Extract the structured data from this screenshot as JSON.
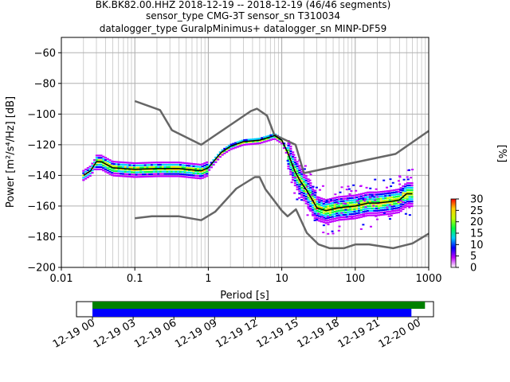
{
  "chart_data": {
    "type": "ppsd",
    "title": {
      "line1": "BK.BK82.00.HHZ   2018-12-19 -- 2018-12-19  (46/46 segments)",
      "line2": "sensor_type CMG-3T sensor_sn T310034",
      "line3": "datalogger_type GuralpMinimus+ datalogger_sn MINP-DF59"
    },
    "xlabel": "Period [s]",
    "ylabel": "Power [m²/s⁴/Hz] [dB]",
    "x_scale": "log",
    "xlim": [
      0.01,
      1000
    ],
    "ylim": [
      -200,
      -50
    ],
    "x_ticks": [
      {
        "v": 0.01,
        "label": "0.01"
      },
      {
        "v": 0.1,
        "label": "0.1"
      },
      {
        "v": 1,
        "label": "1"
      },
      {
        "v": 10,
        "label": "10"
      },
      {
        "v": 100,
        "label": "100"
      },
      {
        "v": 1000,
        "label": "1000"
      }
    ],
    "y_ticks": [
      {
        "v": -60,
        "label": "−60"
      },
      {
        "v": -80,
        "label": "−80"
      },
      {
        "v": -100,
        "label": "−100"
      },
      {
        "v": -120,
        "label": "−120"
      },
      {
        "v": -140,
        "label": "−140"
      },
      {
        "v": -160,
        "label": "−160"
      },
      {
        "v": -180,
        "label": "−180"
      },
      {
        "v": -200,
        "label": "−200"
      }
    ],
    "grid": true,
    "nhnm": [
      [
        0.1,
        -91.5
      ],
      [
        0.22,
        -97.4
      ],
      [
        0.32,
        -110.5
      ],
      [
        0.8,
        -120
      ],
      [
        3.8,
        -98
      ],
      [
        4.6,
        -96.5
      ],
      [
        6.3,
        -101
      ],
      [
        7.9,
        -113.5
      ],
      [
        15.4,
        -120
      ],
      [
        20,
        -138.5
      ],
      [
        354.8,
        -126
      ],
      [
        1000,
        -111
      ]
    ],
    "nlnm": [
      [
        0.1,
        -168
      ],
      [
        0.17,
        -166.7
      ],
      [
        0.4,
        -166.7
      ],
      [
        0.8,
        -169.2
      ],
      [
        1.24,
        -163.7
      ],
      [
        2.4,
        -148.6
      ],
      [
        4.3,
        -141.1
      ],
      [
        5,
        -141.1
      ],
      [
        6,
        -149
      ],
      [
        10,
        -163
      ],
      [
        12,
        -166.7
      ],
      [
        15.6,
        -162.1
      ],
      [
        21.9,
        -177.5
      ],
      [
        31.6,
        -185
      ],
      [
        45,
        -187.5
      ],
      [
        70,
        -187.5
      ],
      [
        101,
        -185
      ],
      [
        154,
        -185
      ],
      [
        328,
        -187.5
      ],
      [
        600,
        -184.4
      ],
      [
        1000,
        -178
      ]
    ],
    "mean": [
      [
        0.02,
        -140
      ],
      [
        0.025,
        -137
      ],
      [
        0.03,
        -131
      ],
      [
        0.035,
        -131
      ],
      [
        0.05,
        -135
      ],
      [
        0.1,
        -136
      ],
      [
        0.2,
        -135.5
      ],
      [
        0.4,
        -135.5
      ],
      [
        0.8,
        -137
      ],
      [
        1,
        -135
      ],
      [
        1.5,
        -125
      ],
      [
        2,
        -121
      ],
      [
        3,
        -118
      ],
      [
        5,
        -117
      ],
      [
        8,
        -114
      ],
      [
        10,
        -117
      ],
      [
        12,
        -125
      ],
      [
        15,
        -137
      ],
      [
        18,
        -144
      ],
      [
        22,
        -150
      ],
      [
        30,
        -161
      ],
      [
        40,
        -163
      ],
      [
        60,
        -161
      ],
      [
        100,
        -160
      ],
      [
        150,
        -158
      ],
      [
        200,
        -158
      ],
      [
        300,
        -157
      ],
      [
        400,
        -156
      ],
      [
        500,
        -152
      ],
      [
        600,
        -152
      ]
    ],
    "colorbar": {
      "label": "[%]",
      "range": [
        0,
        30
      ],
      "ticks": [
        {
          "v": 0,
          "label": "0"
        },
        {
          "v": 5,
          "label": "5"
        },
        {
          "v": 10,
          "label": "10"
        },
        {
          "v": 15,
          "label": "15"
        },
        {
          "v": 20,
          "label": "20"
        },
        {
          "v": 25,
          "label": "25"
        },
        {
          "v": 30,
          "label": "30"
        }
      ],
      "colors": [
        "#ffffff",
        "#c000ff",
        "#0000ff",
        "#00d0ff",
        "#00ff40",
        "#c0ff00",
        "#ffd000",
        "#ff0000"
      ]
    },
    "timeline": {
      "ticks": [
        "12-19 00",
        "12-19 03",
        "12-19 06",
        "12-19 09",
        "12-19 12",
        "12-19 15",
        "12-19 18",
        "12-19 21",
        "12-20 00"
      ],
      "green_bar": {
        "from": 0,
        "to": 24.5
      },
      "blue_bar": {
        "from": 0,
        "to": 23.5
      },
      "colors": {
        "green": "#008000",
        "blue": "#0000ff"
      }
    }
  }
}
